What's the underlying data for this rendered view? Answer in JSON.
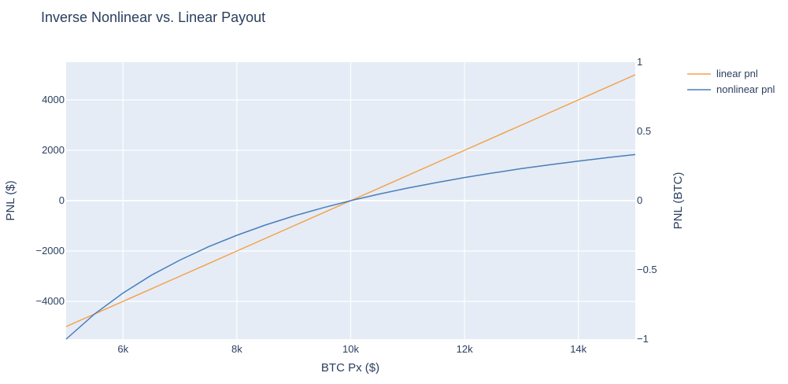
{
  "chart_data": {
    "type": "line",
    "title": "Inverse Nonlinear vs. Linear Payout",
    "xlabel": "BTC Px ($)",
    "ylabel": "PNL ($)",
    "y2label": "PNL (BTC)",
    "xlim": [
      5000,
      15000
    ],
    "ylim": [
      -5500,
      5500
    ],
    "y2lim": [
      -1,
      1
    ],
    "x_ticks": [
      6000,
      8000,
      10000,
      12000,
      14000
    ],
    "x_tick_labels": [
      "6k",
      "8k",
      "10k",
      "12k",
      "14k"
    ],
    "y_ticks": [
      -4000,
      -2000,
      0,
      2000,
      4000
    ],
    "y_tick_labels": [
      "−4000",
      "−2000",
      "0",
      "2000",
      "4000"
    ],
    "y2_ticks": [
      -1,
      -0.5,
      0,
      0.5,
      1
    ],
    "y2_tick_labels": [
      "−1",
      "−0.5",
      "0",
      "0.5",
      "1"
    ],
    "grid": true,
    "legend_position": "top-right",
    "series": [
      {
        "name": "linear pnl",
        "axis": "y",
        "color": "#f5a04a",
        "x": [
          5000,
          6000,
          7000,
          8000,
          9000,
          10000,
          11000,
          12000,
          13000,
          14000,
          15000
        ],
        "y": [
          -5000,
          -4000,
          -3000,
          -2000,
          -1000,
          0,
          1000,
          2000,
          3000,
          4000,
          5000
        ]
      },
      {
        "name": "nonlinear pnl",
        "axis": "y2",
        "color": "#4a7ebb",
        "x": [
          5000,
          5500,
          6000,
          6500,
          7000,
          7500,
          8000,
          8500,
          9000,
          9500,
          10000,
          10500,
          11000,
          11500,
          12000,
          12500,
          13000,
          13500,
          14000,
          14500,
          15000
        ],
        "y": [
          -1.0,
          -0.818,
          -0.667,
          -0.538,
          -0.429,
          -0.333,
          -0.25,
          -0.176,
          -0.111,
          -0.053,
          0.0,
          0.048,
          0.091,
          0.13,
          0.167,
          0.2,
          0.231,
          0.259,
          0.286,
          0.31,
          0.333
        ]
      }
    ]
  }
}
